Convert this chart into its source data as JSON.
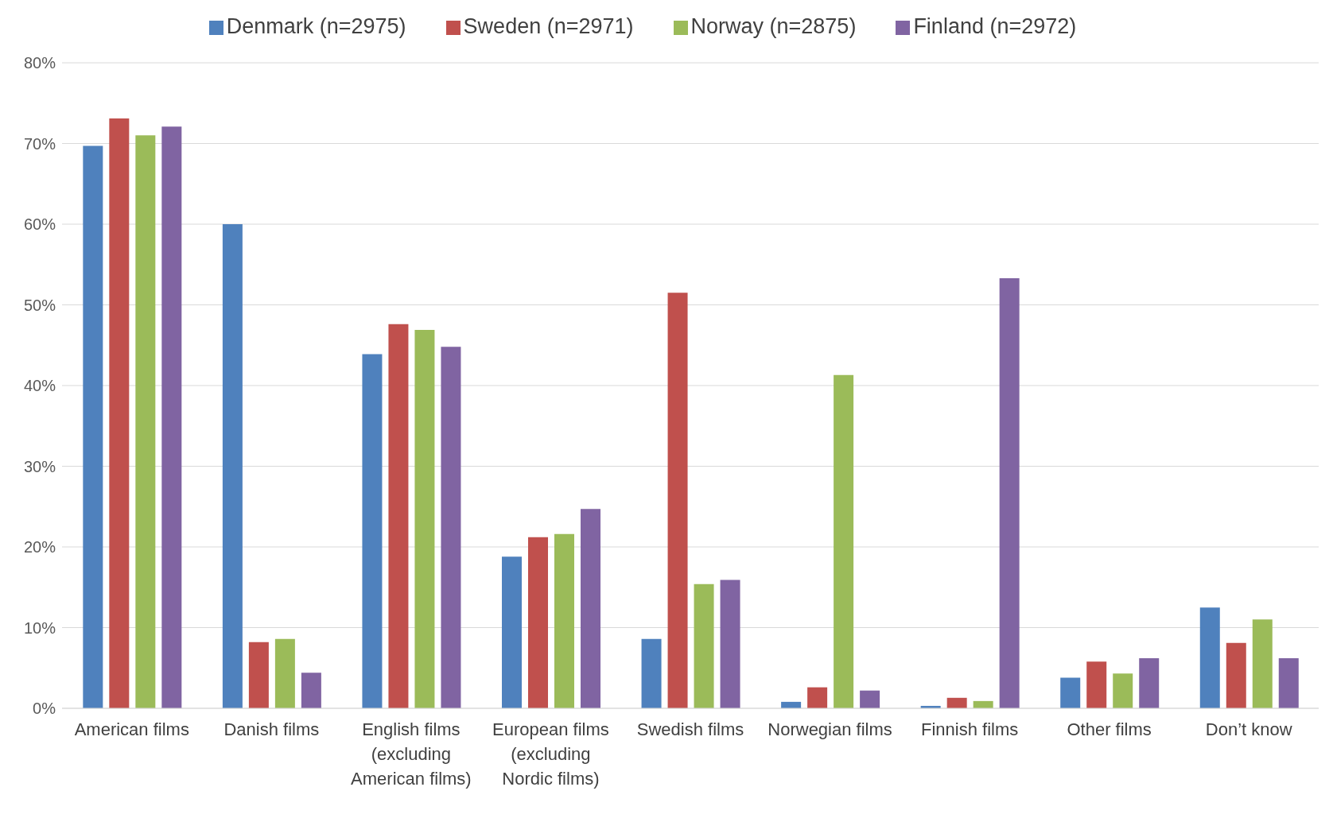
{
  "chart_data": {
    "type": "bar",
    "categories": [
      "American films",
      "Danish films",
      "English films (excluding American films)",
      "European films (excluding Nordic films)",
      "Swedish films",
      "Norwegian films",
      "Finnish films",
      "Other films",
      "Don’t know"
    ],
    "series": [
      {
        "name": "Denmark (n=2975)",
        "color": "#4f81bd",
        "values": [
          69.7,
          60.0,
          43.9,
          18.8,
          8.6,
          0.8,
          0.3,
          3.8,
          12.5
        ]
      },
      {
        "name": "Sweden (n=2971)",
        "color": "#c0504d",
        "values": [
          73.1,
          8.2,
          47.6,
          21.2,
          51.5,
          2.6,
          1.3,
          5.8,
          8.1
        ]
      },
      {
        "name": "Norway (n=2875)",
        "color": "#9bbb59",
        "values": [
          71.0,
          8.6,
          46.9,
          21.6,
          15.4,
          41.3,
          0.9,
          4.3,
          11.0
        ]
      },
      {
        "name": "Finland (n=2972)",
        "color": "#8064a2",
        "values": [
          72.1,
          4.4,
          44.8,
          24.7,
          15.9,
          2.2,
          53.3,
          6.2,
          6.2
        ]
      }
    ],
    "ylim": [
      0,
      80
    ],
    "yticks": [
      {
        "value": 0,
        "label": "0%"
      },
      {
        "value": 10,
        "label": "10%"
      },
      {
        "value": 20,
        "label": "20%"
      },
      {
        "value": 30,
        "label": "30%"
      },
      {
        "value": 40,
        "label": "40%"
      },
      {
        "value": 50,
        "label": "50%"
      },
      {
        "value": 60,
        "label": "60%"
      },
      {
        "value": 70,
        "label": "70%"
      },
      {
        "value": 80,
        "label": "80%"
      }
    ],
    "grid": "y",
    "legend": "top"
  }
}
